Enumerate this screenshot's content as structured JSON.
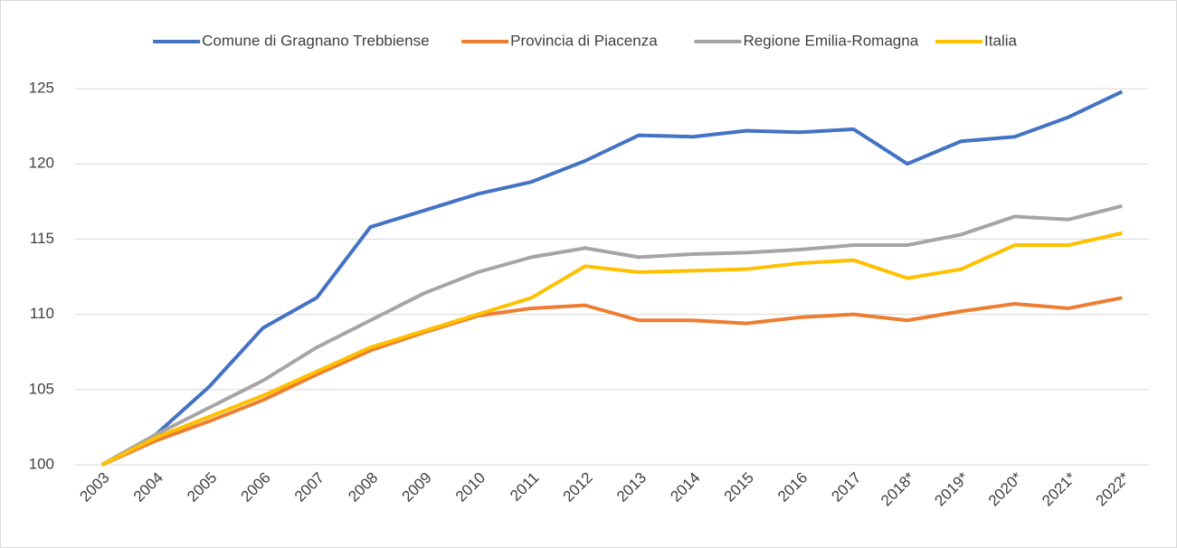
{
  "chart_data": {
    "type": "line",
    "categories": [
      "2003",
      "2004",
      "2005",
      "2006",
      "2007",
      "2008",
      "2009",
      "2010",
      "2011",
      "2012",
      "2013",
      "2014",
      "2015",
      "2016",
      "2017",
      "2018*",
      "2019*",
      "2020*",
      "2021*",
      "2022*"
    ],
    "series": [
      {
        "name": "Comune di  Gragnano Trebbiense",
        "color": "#4472c4",
        "values": [
          100,
          102,
          105.2,
          109.1,
          111.1,
          115.8,
          116.9,
          118,
          118.8,
          120.2,
          121.9,
          121.8,
          122.2,
          122.1,
          122.3,
          120,
          121.5,
          121.8,
          123.1,
          124.8
        ]
      },
      {
        "name": "Provincia di Piacenza",
        "color": "#ed7d31",
        "values": [
          100,
          101.6,
          102.9,
          104.3,
          106,
          107.6,
          108.8,
          109.9,
          110.4,
          110.6,
          109.6,
          109.6,
          109.4,
          109.8,
          110,
          109.6,
          110.2,
          110.7,
          110.4,
          111.1
        ]
      },
      {
        "name": "Regione Emilia-Romagna",
        "color": "#a5a5a5",
        "values": [
          100,
          102,
          103.8,
          105.6,
          107.8,
          109.6,
          111.4,
          112.8,
          113.8,
          114.4,
          113.8,
          114,
          114.1,
          114.3,
          114.6,
          114.6,
          115.3,
          116.5,
          116.3,
          117.2
        ]
      },
      {
        "name": "Italia",
        "color": "#ffc000",
        "values": [
          100,
          101.8,
          103.2,
          104.6,
          106.2,
          107.8,
          108.9,
          110,
          111.1,
          113.2,
          112.8,
          112.9,
          113,
          113.4,
          113.6,
          112.4,
          113,
          114.6,
          114.6,
          115.4
        ]
      }
    ],
    "ylim": [
      100,
      125
    ],
    "yticks": [
      100,
      105,
      110,
      115,
      120,
      125
    ],
    "grid": true,
    "legend": "top"
  }
}
